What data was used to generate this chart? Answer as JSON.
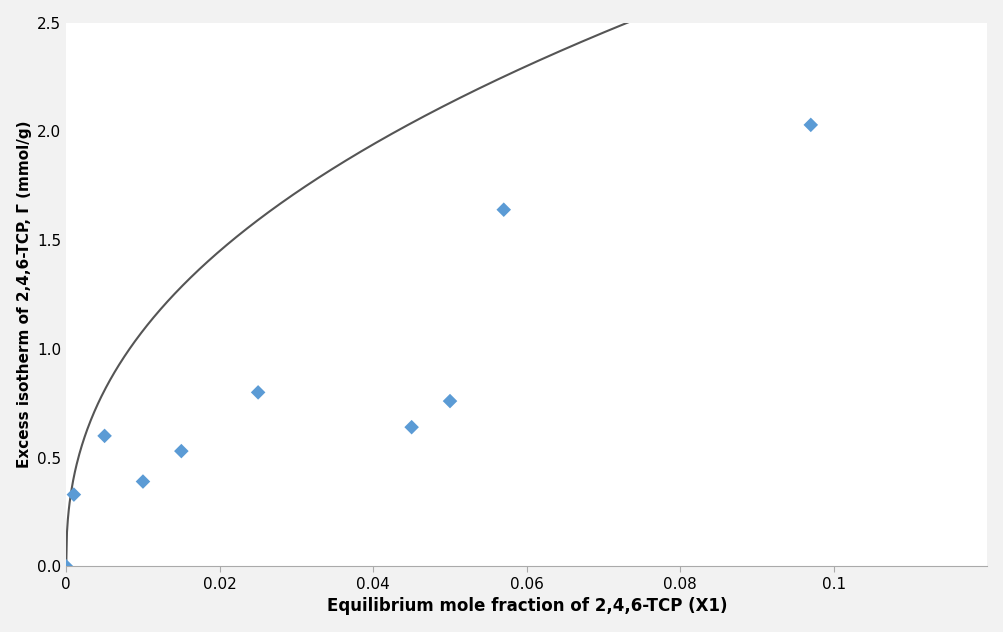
{
  "scatter_x": [
    0.001,
    0.005,
    0.01,
    0.015,
    0.025,
    0.045,
    0.05,
    0.057,
    0.097
  ],
  "scatter_y": [
    0.33,
    0.6,
    0.39,
    0.53,
    0.8,
    0.64,
    0.76,
    1.64,
    2.03
  ],
  "scatter_color": "#5b9bd5",
  "xlim": [
    0,
    0.12
  ],
  "ylim": [
    0,
    2.5
  ],
  "xticks": [
    0,
    0.02,
    0.04,
    0.06,
    0.08,
    0.1
  ],
  "yticks": [
    0,
    0.5,
    1.0,
    1.5,
    2.0,
    2.5
  ],
  "xlabel": "Equilibrium mole fraction of 2,4,6-TCP (X1)",
  "ylabel": "Excess isotherm of 2,4,6-TCP, Γ (mmol/g)",
  "curve_color": "#555555",
  "background_color": "#f2f2f2",
  "plot_bg_color": "#ffffff",
  "grid_color": "#ffffff",
  "xlabel_fontsize": 12,
  "ylabel_fontsize": 11,
  "tick_fontsize": 11,
  "curve_a": 7.5,
  "curve_n": 0.42
}
